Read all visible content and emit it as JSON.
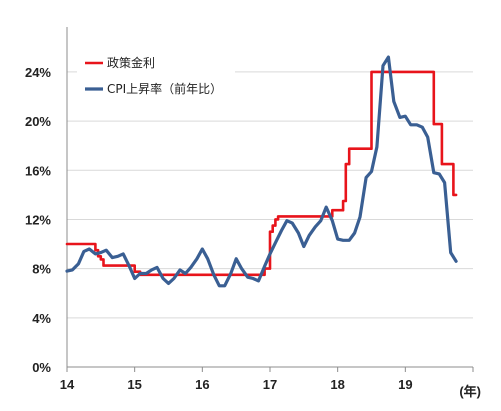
{
  "chart_data": {
    "type": "line",
    "title": "",
    "xlabel": "(年)",
    "ylabel": "",
    "x_ticks": [
      "14",
      "15",
      "16",
      "17",
      "18",
      "19"
    ],
    "xlim": [
      2014,
      2020
    ],
    "y_ticks": [
      "0%",
      "4%",
      "8%",
      "12%",
      "16%",
      "20%",
      "24%"
    ],
    "ylim": [
      0,
      27
    ],
    "grid": "horizontal",
    "legend_position": "top-left",
    "series": [
      {
        "name": "政策金利",
        "color": "#e8141b",
        "step": true,
        "x": [
          2014.0,
          2014.42,
          2014.46,
          2014.5,
          2014.54,
          2014.92,
          2015.0,
          2015.08,
          2015.5,
          2016.0,
          2016.5,
          2016.92,
          2017.0,
          2017.04,
          2017.08,
          2017.12,
          2017.17,
          2017.92,
          2018.08,
          2018.12,
          2018.17,
          2018.25,
          2018.5,
          2018.58,
          2019.0,
          2019.08,
          2019.42,
          2019.54,
          2019.71,
          2019.75
        ],
        "y": [
          10.0,
          9.5,
          9.0,
          8.75,
          8.25,
          8.25,
          7.75,
          7.5,
          7.5,
          7.5,
          7.5,
          8.0,
          11.0,
          11.5,
          12.0,
          12.25,
          12.25,
          12.75,
          13.5,
          16.5,
          17.75,
          17.75,
          24.0,
          24.0,
          24.0,
          24.0,
          19.75,
          16.5,
          14.0,
          14.0
        ]
      },
      {
        "name": "CPI上昇率（前年比）",
        "color": "#3a5f93",
        "step": false,
        "x": [
          2014.0,
          2014.08,
          2014.17,
          2014.25,
          2014.33,
          2014.42,
          2014.5,
          2014.58,
          2014.67,
          2014.75,
          2014.83,
          2014.92,
          2015.0,
          2015.08,
          2015.17,
          2015.25,
          2015.33,
          2015.42,
          2015.5,
          2015.58,
          2015.67,
          2015.75,
          2015.83,
          2015.92,
          2016.0,
          2016.08,
          2016.17,
          2016.25,
          2016.33,
          2016.42,
          2016.5,
          2016.58,
          2016.67,
          2016.75,
          2016.83,
          2016.92,
          2017.0,
          2017.08,
          2017.17,
          2017.25,
          2017.33,
          2017.42,
          2017.5,
          2017.58,
          2017.67,
          2017.75,
          2017.83,
          2017.92,
          2018.0,
          2018.08,
          2018.17,
          2018.25,
          2018.33,
          2018.42,
          2018.5,
          2018.58,
          2018.67,
          2018.75,
          2018.83,
          2018.92,
          2019.0,
          2019.08,
          2019.17,
          2019.25,
          2019.33,
          2019.42,
          2019.5,
          2019.58,
          2019.67,
          2019.75
        ],
        "y": [
          7.8,
          7.9,
          8.4,
          9.4,
          9.6,
          9.2,
          9.3,
          9.5,
          8.9,
          9.0,
          9.2,
          8.2,
          7.2,
          7.6,
          7.6,
          7.9,
          8.1,
          7.2,
          6.8,
          7.2,
          7.9,
          7.6,
          8.1,
          8.8,
          9.6,
          8.8,
          7.5,
          6.6,
          6.6,
          7.6,
          8.8,
          8.0,
          7.3,
          7.2,
          7.0,
          8.2,
          9.2,
          10.1,
          11.1,
          11.9,
          11.7,
          10.9,
          9.8,
          10.7,
          11.4,
          11.9,
          13.0,
          11.9,
          10.4,
          10.3,
          10.3,
          10.9,
          12.2,
          15.4,
          15.9,
          17.9,
          24.5,
          25.2,
          21.6,
          20.3,
          20.4,
          19.7,
          19.7,
          19.5,
          18.7,
          15.8,
          15.7,
          15.0,
          9.3,
          8.6
        ]
      }
    ]
  }
}
